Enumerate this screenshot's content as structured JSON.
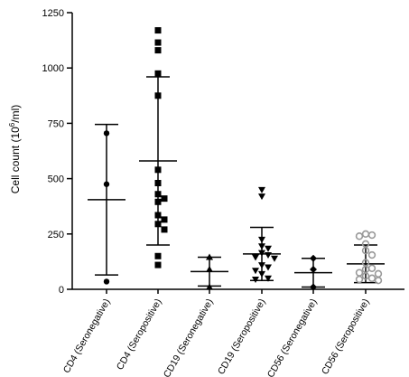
{
  "chart_data": {
    "type": "scatter",
    "ylabel": "Cell count (10",
    "ylabel_sup": "6",
    "ylabel_unit": "/ml)",
    "ylim": [
      0,
      1250
    ],
    "yticks": [
      0,
      250,
      500,
      750,
      1000,
      1250
    ],
    "ytick_labels": [
      "0",
      "250",
      "500",
      "750",
      "1000",
      "1250"
    ],
    "grid": false,
    "categories": [
      "CD4 (Seronegative)",
      "CD4 (Seropositive)",
      "CD19 (Seronegative)",
      "CD19 (Seropositive)",
      "CD56 (Seronegative)",
      "CD56 (Seropositive)"
    ],
    "series": [
      {
        "category": "CD4 (Seronegative)",
        "marker": "circle",
        "color": "#000000",
        "values": [
          705,
          475,
          35
        ],
        "mean": 405,
        "sd_upper": 745,
        "sd_lower": 65
      },
      {
        "category": "CD4 (Seropositive)",
        "marker": "square",
        "color": "#000000",
        "values": [
          1170,
          1115,
          1080,
          975,
          875,
          540,
          480,
          430,
          410,
          395,
          335,
          315,
          295,
          270,
          150,
          110
        ],
        "mean": 580,
        "sd_upper": 960,
        "sd_lower": 200
      },
      {
        "category": "CD19 (Seronegative)",
        "marker": "triangle-up",
        "color": "#000000",
        "values": [
          145,
          90,
          10
        ],
        "mean": 80,
        "sd_upper": 145,
        "sd_lower": 15
      },
      {
        "category": "CD19 (Seropositive)",
        "marker": "triangle-down",
        "color": "#000000",
        "values": [
          450,
          420,
          225,
          195,
          185,
          165,
          155,
          145,
          140,
          110,
          100,
          85,
          70,
          50,
          45
        ],
        "mean": 160,
        "sd_upper": 280,
        "sd_lower": 40
      },
      {
        "category": "CD56 (Seronegative)",
        "marker": "diamond",
        "color": "#000000",
        "values": [
          140,
          90,
          10
        ],
        "mean": 75,
        "sd_upper": 140,
        "sd_lower": 10
      },
      {
        "category": "CD56 (Seropositive)",
        "marker": "open-circle",
        "color": "#999999",
        "values": [
          250,
          245,
          240,
          205,
          175,
          155,
          120,
          95,
          90,
          75,
          70,
          60,
          50,
          45,
          40
        ],
        "mean": 115,
        "sd_upper": 200,
        "sd_lower": 30
      }
    ]
  }
}
